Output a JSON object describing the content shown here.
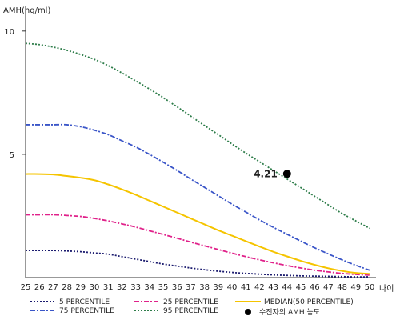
{
  "chart_data": {
    "type": "line",
    "ylabel": "AMH(ng/ml)",
    "xlabel": "나이",
    "xlim": [
      25,
      50
    ],
    "ylim": [
      0,
      11
    ],
    "x_ticks": [
      25,
      26,
      27,
      28,
      29,
      30,
      31,
      32,
      33,
      34,
      35,
      36,
      37,
      38,
      39,
      40,
      41,
      42,
      43,
      44,
      45,
      46,
      47,
      48,
      49,
      50
    ],
    "y_ticks": [
      5,
      10
    ],
    "x": [
      25,
      26,
      27,
      28,
      29,
      30,
      31,
      32,
      33,
      34,
      35,
      36,
      37,
      38,
      39,
      40,
      41,
      42,
      43,
      44,
      45,
      46,
      47,
      48,
      49,
      50
    ],
    "series": [
      {
        "name": "5 PERCENTILE",
        "color": "#1a1a6e",
        "dash": "2,2",
        "values": [
          1.1,
          1.1,
          1.1,
          1.08,
          1.05,
          1.0,
          0.95,
          0.85,
          0.75,
          0.65,
          0.55,
          0.47,
          0.39,
          0.32,
          0.26,
          0.21,
          0.17,
          0.14,
          0.11,
          0.09,
          0.07,
          0.06,
          0.05,
          0.04,
          0.03,
          0.03
        ]
      },
      {
        "name": "25 PERCENTILE",
        "color": "#e0218a",
        "dash": "6,2,2,2",
        "values": [
          2.55,
          2.55,
          2.55,
          2.52,
          2.48,
          2.4,
          2.3,
          2.18,
          2.05,
          1.9,
          1.75,
          1.6,
          1.44,
          1.29,
          1.14,
          0.99,
          0.85,
          0.72,
          0.6,
          0.49,
          0.39,
          0.3,
          0.23,
          0.17,
          0.13,
          0.1
        ]
      },
      {
        "name": "MEDIAN(50 PERCENTILE)",
        "color": "#f5c400",
        "dash": "",
        "values": [
          4.2,
          4.2,
          4.18,
          4.12,
          4.05,
          3.95,
          3.78,
          3.58,
          3.36,
          3.12,
          2.88,
          2.64,
          2.4,
          2.16,
          1.92,
          1.7,
          1.48,
          1.26,
          1.05,
          0.86,
          0.68,
          0.52,
          0.38,
          0.27,
          0.19,
          0.15
        ]
      },
      {
        "name": "75 PERCENTILE",
        "color": "#3a55c8",
        "dash": "6,2,2,2",
        "values": [
          6.2,
          6.2,
          6.2,
          6.2,
          6.12,
          5.98,
          5.8,
          5.55,
          5.3,
          5.0,
          4.68,
          4.35,
          4.0,
          3.66,
          3.32,
          2.98,
          2.66,
          2.34,
          2.04,
          1.76,
          1.48,
          1.21,
          0.96,
          0.72,
          0.5,
          0.3
        ]
      },
      {
        "name": "95 PERCENTILE",
        "color": "#2e7d4a",
        "dash": "2,2",
        "values": [
          9.5,
          9.45,
          9.35,
          9.22,
          9.05,
          8.85,
          8.6,
          8.3,
          7.98,
          7.65,
          7.3,
          6.93,
          6.55,
          6.17,
          5.8,
          5.42,
          5.05,
          4.7,
          4.35,
          4.0,
          3.65,
          3.3,
          2.95,
          2.6,
          2.3,
          2.0
        ]
      }
    ],
    "points": [
      {
        "name": "수진자의 AMH 농도",
        "x": 44,
        "y": 4.21,
        "label": "4.21",
        "color": "#000000"
      }
    ],
    "legend": {
      "position": "bottom"
    },
    "grid": false
  }
}
